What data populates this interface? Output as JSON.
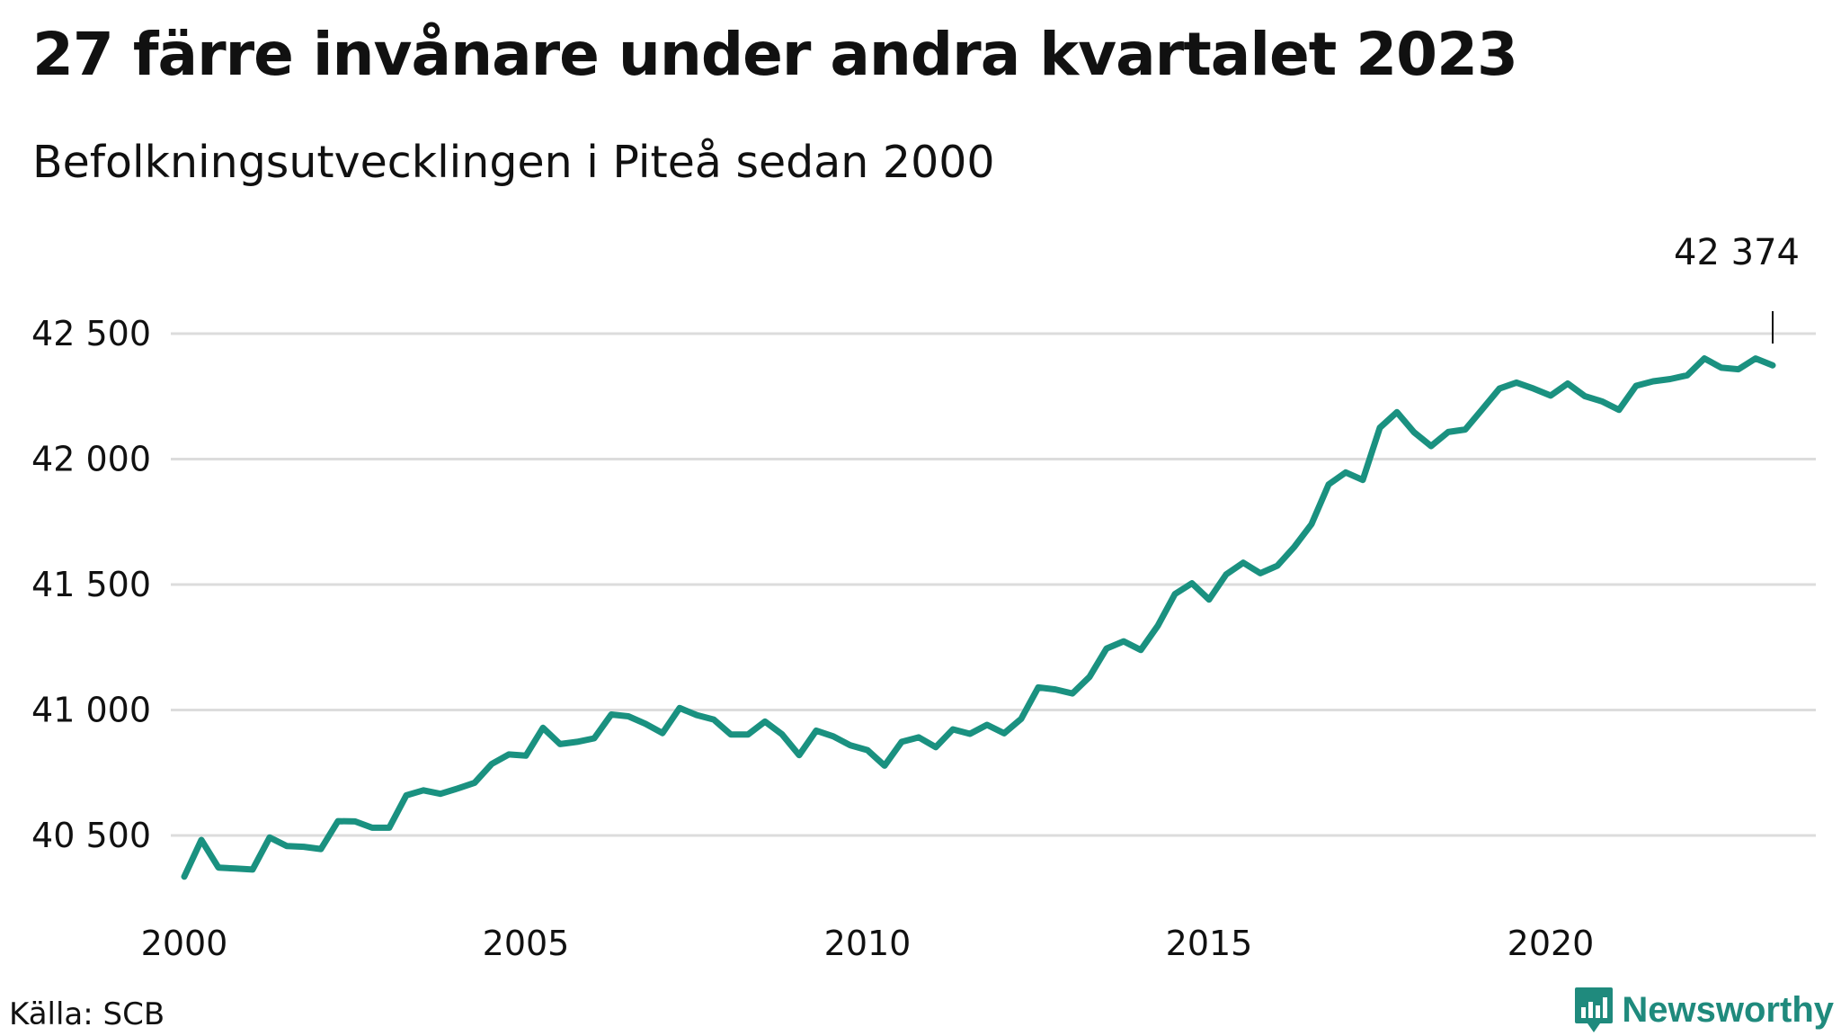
{
  "title": "27 färre invånare under andra kvartalet 2023",
  "subtitle": "Befolkningsutvecklingen i Piteå sedan 2000",
  "source": "Källa: SCB",
  "brand": "Newsworthy",
  "line_color": "#1a9180",
  "chart_data": {
    "type": "line",
    "title": "27 färre invånare under andra kvartalet 2023",
    "subtitle": "Befolkningsutvecklingen i Piteå sedan 2000",
    "xlabel": "",
    "ylabel": "",
    "xlim": [
      2000,
      2023.25
    ],
    "ylim": [
      40340,
      42560
    ],
    "x_ticks": [
      2000,
      2005,
      2010,
      2015,
      2020
    ],
    "x_tick_labels": [
      "2000",
      "2005",
      "2010",
      "2015",
      "2020"
    ],
    "y_ticks": [
      40500,
      41000,
      41500,
      42000,
      42500
    ],
    "y_tick_labels": [
      "40 500",
      "41 000",
      "41 500",
      "42 000",
      "42 500"
    ],
    "grid": "horizontal",
    "end_label": "42 374",
    "x": [
      2000.0,
      2000.25,
      2000.5,
      2000.75,
      2001.0,
      2001.25,
      2001.5,
      2001.75,
      2002.0,
      2002.25,
      2002.5,
      2002.75,
      2003.0,
      2003.25,
      2003.5,
      2003.75,
      2004.0,
      2004.25,
      2004.5,
      2004.75,
      2005.0,
      2005.25,
      2005.5,
      2005.75,
      2006.0,
      2006.25,
      2006.5,
      2006.75,
      2007.0,
      2007.25,
      2007.5,
      2007.75,
      2008.0,
      2008.25,
      2008.5,
      2008.75,
      2009.0,
      2009.25,
      2009.5,
      2009.75,
      2010.0,
      2010.25,
      2010.5,
      2010.75,
      2011.0,
      2011.25,
      2011.5,
      2011.75,
      2012.0,
      2012.25,
      2012.5,
      2012.75,
      2013.0,
      2013.25,
      2013.5,
      2013.75,
      2014.0,
      2014.25,
      2014.5,
      2014.75,
      2015.0,
      2015.25,
      2015.5,
      2015.75,
      2016.0,
      2016.25,
      2016.5,
      2016.75,
      2017.0,
      2017.25,
      2017.5,
      2017.75,
      2018.0,
      2018.25,
      2018.5,
      2018.75,
      2019.0,
      2019.25,
      2019.5,
      2019.75,
      2020.0,
      2020.25,
      2020.5,
      2020.75,
      2021.0,
      2021.25,
      2021.5,
      2021.75,
      2022.0,
      2022.25,
      2022.5,
      2022.75,
      2023.0,
      2023.25
    ],
    "series": [
      {
        "values": [
          40336,
          40482,
          40372,
          40368,
          40364,
          40492,
          40458,
          40455,
          40446,
          40557,
          40556,
          40531,
          40531,
          40660,
          40680,
          40666,
          40687,
          40710,
          40785,
          40823,
          40818,
          40929,
          40864,
          40873,
          40887,
          40982,
          40975,
          40945,
          40908,
          41008,
          40980,
          40962,
          40902,
          40902,
          40954,
          40903,
          40820,
          40918,
          40895,
          40859,
          40840,
          40778,
          40873,
          40891,
          40852,
          40923,
          40905,
          40941,
          40907,
          40965,
          41090,
          41082,
          41066,
          41132,
          41245,
          41274,
          41239,
          41336,
          41462,
          41505,
          41440,
          41540,
          41587,
          41545,
          41575,
          41651,
          41741,
          41899,
          41947,
          41917,
          42125,
          42187,
          42107,
          42052,
          42108,
          42118,
          42199,
          42281,
          42305,
          42281,
          42253,
          42301,
          42251,
          42230,
          42196,
          42292,
          42310,
          42319,
          42334,
          42401,
          42364,
          42358,
          42401,
          42374
        ]
      }
    ]
  }
}
